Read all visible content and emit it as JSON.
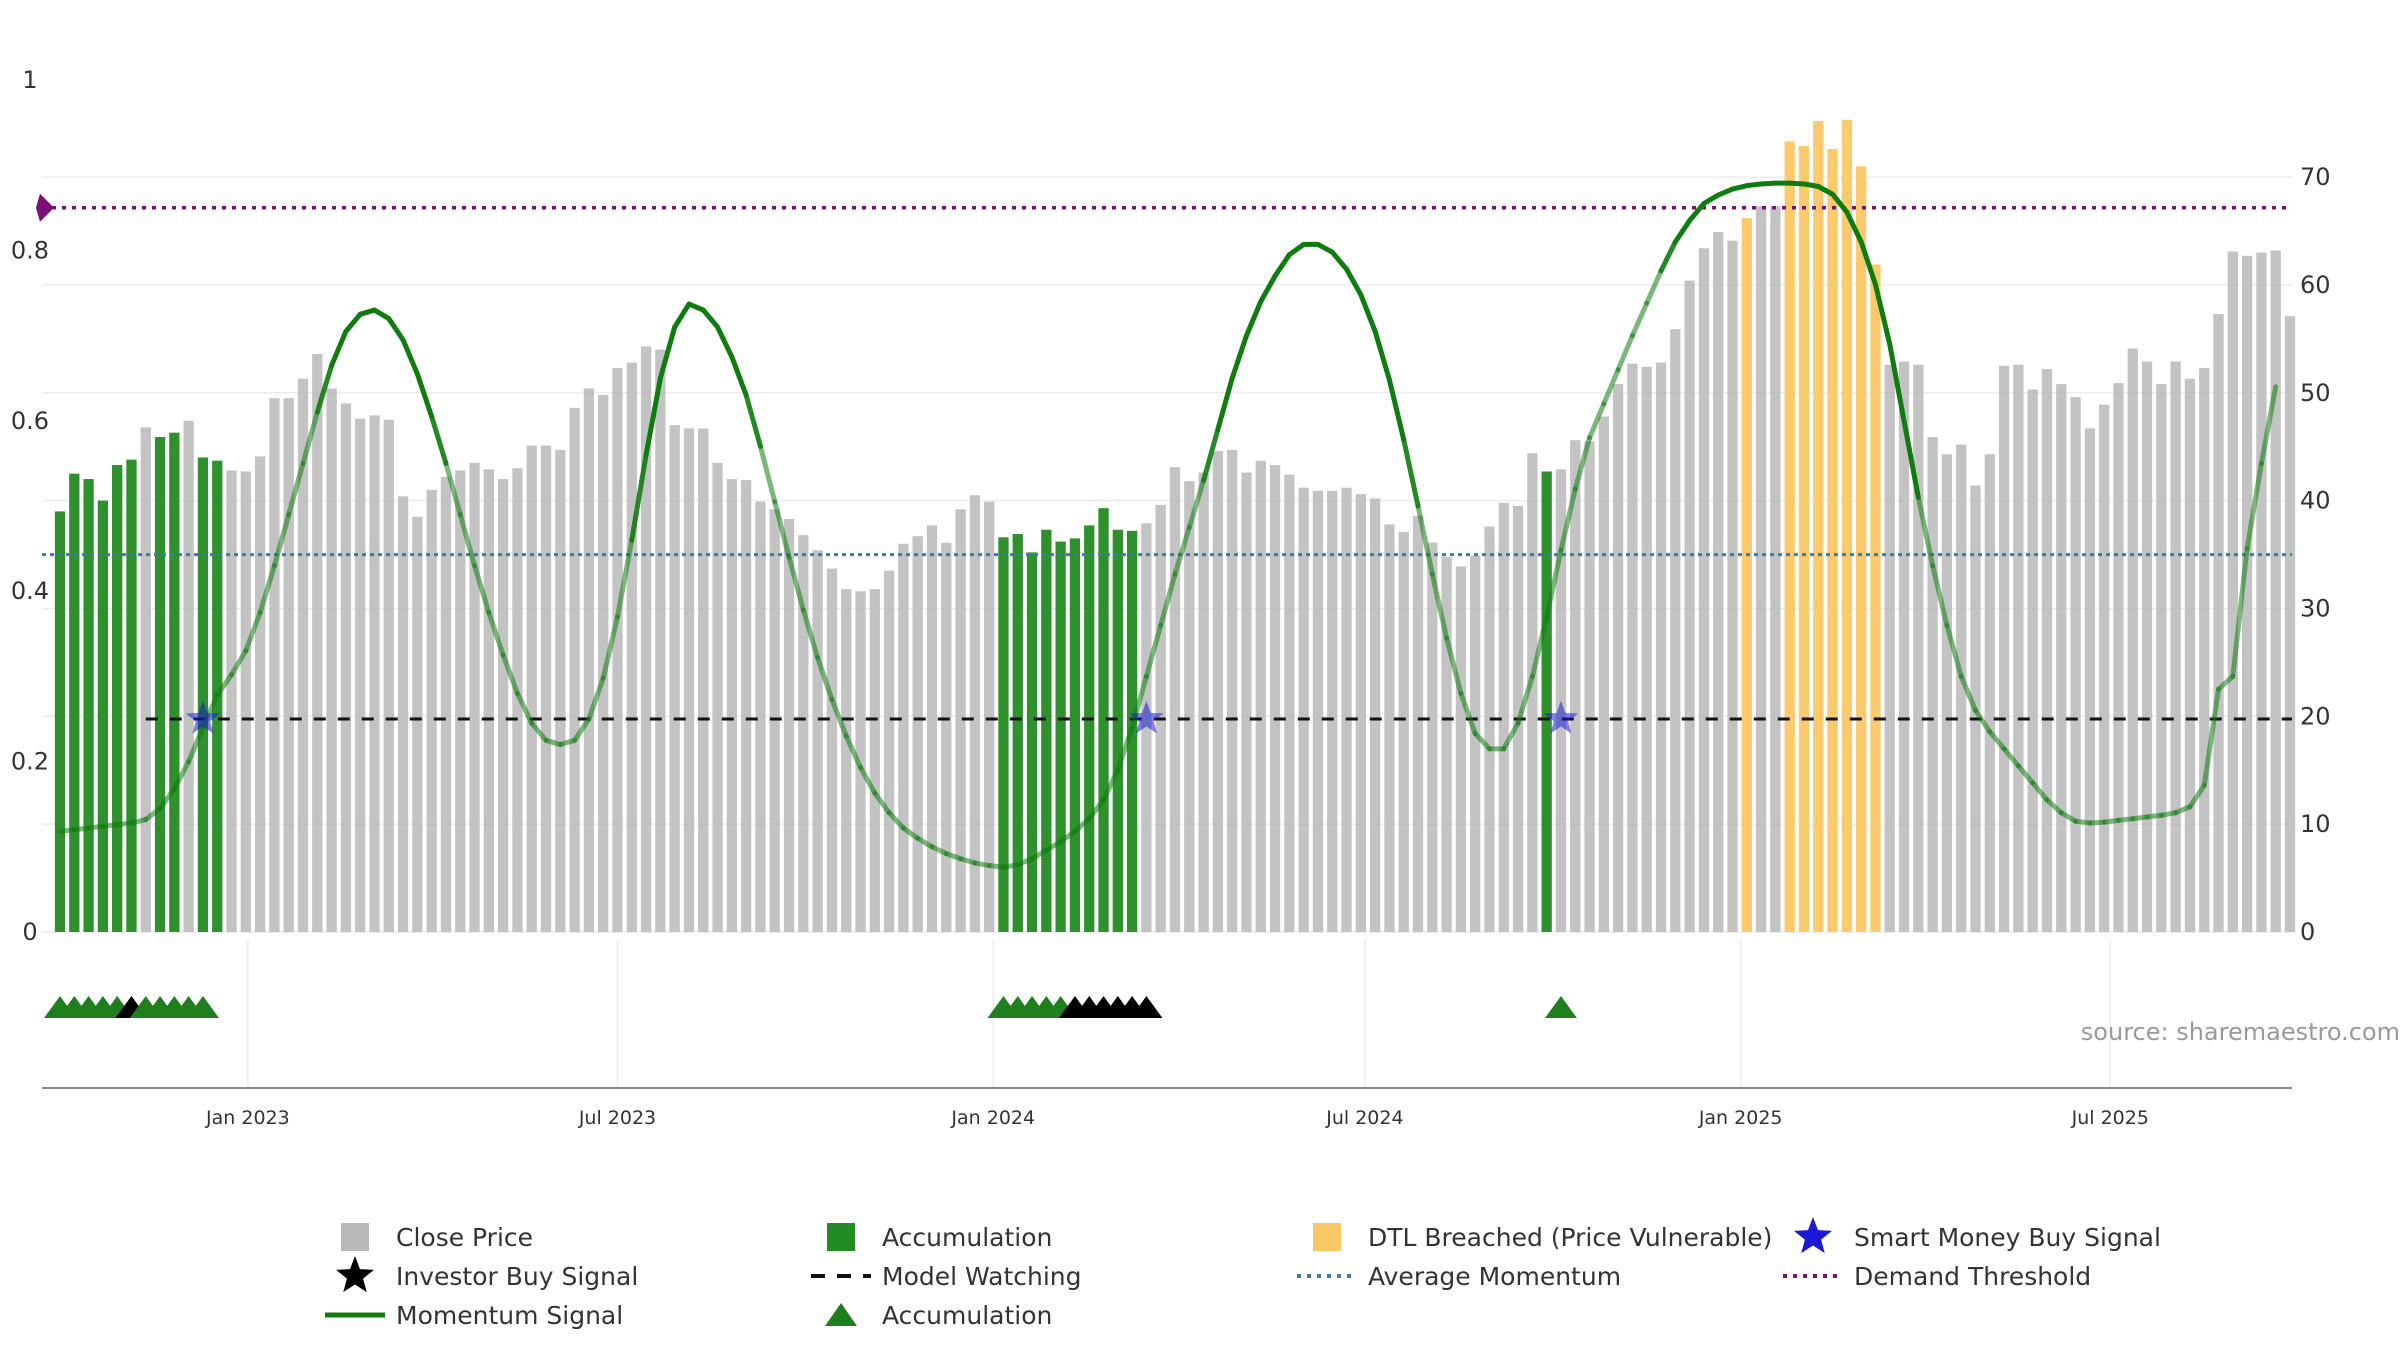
{
  "chart_data": {
    "type": "bar",
    "title": "",
    "source": "source: sharemaestro.com",
    "start_date": "2022-10-01",
    "bar_interval_days": 7,
    "left_axis": {
      "ylim": [
        0,
        1
      ],
      "ticks": [
        0,
        0.2,
        0.4,
        0.6,
        0.8,
        1
      ],
      "tick_labels": [
        "0",
        "0.2",
        "0.4",
        "0.6",
        "0.8",
        "1"
      ]
    },
    "right_axis": {
      "ylim": [
        0,
        79
      ],
      "ticks": [
        0,
        10,
        20,
        30,
        40,
        50,
        60,
        70
      ],
      "tick_labels": [
        "0",
        "10",
        "20",
        "30",
        "40",
        "50",
        "60",
        "70"
      ]
    },
    "x_ticks": [
      {
        "date": "2023-01-01",
        "label": "Jan 2023"
      },
      {
        "date": "2023-07-01",
        "label": "Jul 2023"
      },
      {
        "date": "2024-01-01",
        "label": "Jan 2024"
      },
      {
        "date": "2024-07-01",
        "label": "Jul 2024"
      },
      {
        "date": "2025-01-01",
        "label": "Jan 2025"
      },
      {
        "date": "2025-07-01",
        "label": "Jul 2025"
      }
    ],
    "close_price": [
      39.0,
      42.5,
      42.0,
      40.0,
      43.3,
      43.8,
      46.8,
      45.9,
      46.3,
      47.4,
      44.0,
      43.7,
      42.8,
      42.7,
      44.1,
      49.5,
      49.5,
      51.3,
      53.6,
      50.4,
      49.0,
      47.6,
      47.9,
      47.5,
      40.4,
      38.5,
      41.0,
      42.2,
      42.8,
      43.5,
      42.9,
      42.0,
      43.0,
      45.1,
      45.1,
      44.7,
      48.6,
      50.4,
      49.8,
      52.3,
      52.8,
      54.3,
      54.0,
      47.0,
      46.7,
      46.7,
      43.5,
      42.0,
      41.9,
      39.9,
      39.2,
      38.3,
      36.8,
      35.4,
      33.7,
      31.8,
      31.6,
      31.8,
      33.5,
      36.0,
      36.7,
      37.7,
      36.1,
      39.2,
      40.5,
      39.9,
      36.6,
      36.9,
      35.2,
      37.3,
      36.2,
      36.5,
      37.7,
      39.3,
      37.3,
      37.2,
      37.9,
      39.6,
      43.1,
      41.8,
      42.6,
      44.6,
      44.7,
      42.6,
      43.7,
      43.3,
      42.4,
      41.2,
      40.9,
      40.9,
      41.2,
      40.6,
      40.2,
      37.8,
      37.1,
      38.6,
      36.1,
      34.8,
      33.9,
      34.9,
      37.6,
      39.8,
      39.5,
      44.4,
      42.7,
      42.9,
      45.6,
      45.5,
      47.8,
      50.8,
      52.7,
      52.4,
      52.8,
      55.9,
      60.4,
      63.4,
      64.9,
      64.1,
      66.2,
      67.3,
      67.3,
      73.3,
      72.9,
      75.2,
      72.6,
      75.3,
      71.0,
      61.9,
      52.6,
      52.9,
      52.6,
      45.9,
      44.3,
      45.2,
      41.4,
      44.3,
      52.5,
      52.6,
      50.3,
      52.2,
      50.8,
      49.6,
      46.7,
      48.9,
      50.9,
      54.1,
      52.9,
      50.8,
      52.9,
      51.3,
      52.3,
      57.3,
      63.1,
      62.7,
      63.0,
      63.2,
      57.1
    ],
    "bar_status": [
      "A",
      "A",
      "A",
      "A",
      "A",
      "A",
      "P",
      "A",
      "A",
      "P",
      "A",
      "A",
      "P",
      "P",
      "P",
      "P",
      "P",
      "P",
      "P",
      "P",
      "P",
      "P",
      "P",
      "P",
      "P",
      "P",
      "P",
      "P",
      "P",
      "P",
      "P",
      "P",
      "P",
      "P",
      "P",
      "P",
      "P",
      "P",
      "P",
      "P",
      "P",
      "P",
      "P",
      "P",
      "P",
      "P",
      "P",
      "P",
      "P",
      "P",
      "P",
      "P",
      "P",
      "P",
      "P",
      "P",
      "P",
      "P",
      "P",
      "P",
      "P",
      "P",
      "P",
      "P",
      "P",
      "P",
      "A",
      "A",
      "A",
      "A",
      "A",
      "A",
      "A",
      "A",
      "A",
      "A",
      "P",
      "P",
      "P",
      "P",
      "P",
      "P",
      "P",
      "P",
      "P",
      "P",
      "P",
      "P",
      "P",
      "P",
      "P",
      "P",
      "P",
      "P",
      "P",
      "P",
      "P",
      "P",
      "P",
      "P",
      "P",
      "P",
      "P",
      "P",
      "A",
      "P",
      "P",
      "P",
      "P",
      "P",
      "P",
      "P",
      "P",
      "P",
      "P",
      "P",
      "P",
      "P",
      "D",
      "P",
      "P",
      "D",
      "D",
      "D",
      "D",
      "D",
      "D",
      "D",
      "P",
      "P",
      "P",
      "P",
      "P",
      "P",
      "P",
      "P",
      "P",
      "P",
      "P",
      "P",
      "P",
      "P",
      "P",
      "P",
      "P",
      "P",
      "P",
      "P",
      "P",
      "P",
      "P",
      "P",
      "P",
      "P",
      "P",
      "P",
      "P",
      "P",
      "P"
    ],
    "momentum_signal": [
      0.118,
      0.12,
      0.122,
      0.124,
      0.126,
      0.128,
      0.132,
      0.145,
      0.168,
      0.2,
      0.24,
      0.278,
      0.302,
      0.33,
      0.375,
      0.43,
      0.49,
      0.55,
      0.61,
      0.665,
      0.705,
      0.725,
      0.73,
      0.72,
      0.695,
      0.655,
      0.605,
      0.55,
      0.49,
      0.43,
      0.375,
      0.325,
      0.28,
      0.245,
      0.225,
      0.22,
      0.225,
      0.25,
      0.298,
      0.37,
      0.46,
      0.56,
      0.65,
      0.71,
      0.737,
      0.73,
      0.71,
      0.675,
      0.63,
      0.57,
      0.505,
      0.44,
      0.378,
      0.322,
      0.273,
      0.23,
      0.193,
      0.163,
      0.14,
      0.122,
      0.11,
      0.1,
      0.092,
      0.086,
      0.081,
      0.078,
      0.076,
      0.079,
      0.086,
      0.096,
      0.106,
      0.118,
      0.133,
      0.155,
      0.19,
      0.24,
      0.3,
      0.36,
      0.42,
      0.475,
      0.53,
      0.59,
      0.65,
      0.7,
      0.74,
      0.77,
      0.795,
      0.807,
      0.807,
      0.798,
      0.778,
      0.748,
      0.705,
      0.648,
      0.578,
      0.5,
      0.42,
      0.345,
      0.28,
      0.233,
      0.215,
      0.215,
      0.245,
      0.3,
      0.37,
      0.448,
      0.52,
      0.58,
      0.62,
      0.66,
      0.7,
      0.738,
      0.776,
      0.81,
      0.835,
      0.855,
      0.865,
      0.872,
      0.876,
      0.878,
      0.879,
      0.879,
      0.878,
      0.875,
      0.866,
      0.845,
      0.81,
      0.76,
      0.69,
      0.6,
      0.51,
      0.43,
      0.36,
      0.3,
      0.26,
      0.235,
      0.215,
      0.195,
      0.175,
      0.155,
      0.14,
      0.13,
      0.128,
      0.129,
      0.131,
      0.133,
      0.135,
      0.137,
      0.14,
      0.147,
      0.172,
      0.285,
      0.3,
      0.45,
      0.55,
      0.64
    ],
    "momentum_alpha": [
      0.55,
      0.55,
      0.55,
      0.55,
      0.55,
      0.55,
      0.55,
      0.55,
      0.55,
      0.55,
      0.55,
      0.55,
      0.55,
      0.55,
      0.55,
      0.55,
      0.55,
      0.55,
      0.9,
      1,
      1,
      1,
      1,
      1,
      1,
      1,
      1,
      0.9,
      0.55,
      0.55,
      0.55,
      0.55,
      0.55,
      0.55,
      0.55,
      0.55,
      0.55,
      0.55,
      0.55,
      0.55,
      0.9,
      1,
      1,
      1,
      1,
      1,
      1,
      1,
      1,
      0.9,
      0.55,
      0.55,
      0.55,
      0.55,
      0.55,
      0.55,
      0.55,
      0.55,
      0.55,
      0.55,
      0.55,
      0.55,
      0.55,
      0.55,
      0.55,
      0.55,
      0.55,
      0.55,
      0.55,
      0.55,
      0.55,
      0.55,
      0.55,
      0.55,
      0.55,
      0.55,
      0.55,
      0.55,
      0.55,
      0.55,
      0.9,
      1,
      1,
      1,
      1,
      1,
      1,
      1,
      1,
      1,
      1,
      1,
      1,
      1,
      1,
      0.9,
      0.55,
      0.55,
      0.55,
      0.55,
      0.55,
      0.55,
      0.55,
      0.55,
      0.55,
      0.55,
      0.55,
      0.55,
      0.55,
      0.55,
      0.55,
      0.55,
      0.9,
      1,
      1,
      1,
      1,
      1,
      1,
      1,
      1,
      1,
      1,
      1,
      1,
      1,
      1,
      1,
      1,
      1,
      1,
      0.55,
      0.55,
      0.55,
      0.55,
      0.55,
      0.55,
      0.55,
      0.55,
      0.55,
      0.55,
      0.55,
      0.55,
      0.55,
      0.55,
      0.55,
      0.55,
      0.55,
      0.55,
      0.55,
      0.55,
      0.55,
      0.55,
      0.55,
      0.55,
      0.55,
      0.55
    ],
    "average_momentum": 0.443,
    "model_watching": 0.25,
    "demand_threshold": 0.85,
    "smart_money_buy_signals": [
      10,
      76,
      105
    ],
    "accumulation_markers": [
      {
        "index": 0,
        "type": "accumulation"
      },
      {
        "index": 1,
        "type": "accumulation"
      },
      {
        "index": 2,
        "type": "accumulation"
      },
      {
        "index": 3,
        "type": "accumulation"
      },
      {
        "index": 4,
        "type": "accumulation"
      },
      {
        "index": 5,
        "type": "investor"
      },
      {
        "index": 6,
        "type": "accumulation"
      },
      {
        "index": 7,
        "type": "accumulation"
      },
      {
        "index": 8,
        "type": "accumulation"
      },
      {
        "index": 9,
        "type": "accumulation"
      },
      {
        "index": 10,
        "type": "accumulation"
      },
      {
        "index": 66,
        "type": "accumulation"
      },
      {
        "index": 67,
        "type": "accumulation"
      },
      {
        "index": 68,
        "type": "accumulation"
      },
      {
        "index": 69,
        "type": "accumulation"
      },
      {
        "index": 70,
        "type": "accumulation"
      },
      {
        "index": 71,
        "type": "investor"
      },
      {
        "index": 72,
        "type": "investor"
      },
      {
        "index": 73,
        "type": "investor"
      },
      {
        "index": 74,
        "type": "investor"
      },
      {
        "index": 75,
        "type": "investor"
      },
      {
        "index": 76,
        "type": "investor"
      },
      {
        "index": 105,
        "type": "accumulation"
      }
    ],
    "colors": {
      "close_price": "#b9b9b9",
      "accumulation": "#238b23",
      "dtl_breached": "#fbc766",
      "momentum": "#0e7c0e",
      "average_momentum": "#3a7da8",
      "model_watching": "#111111",
      "demand_threshold": "#7b0f74",
      "smart_money": "#1a1ad6",
      "investor": "#000000",
      "accumulation_marker": "#1f7f1f"
    },
    "legend": [
      {
        "label": "Close Price",
        "symbol": "square",
        "color": "#b9b9b9"
      },
      {
        "label": "Investor Buy Signal",
        "symbol": "star",
        "color": "#000000"
      },
      {
        "label": "Momentum Signal",
        "symbol": "line",
        "color": "#0e7c0e"
      },
      {
        "label": "Accumulation",
        "symbol": "square",
        "color": "#238b23"
      },
      {
        "label": "Model Watching",
        "symbol": "dash",
        "color": "#111111"
      },
      {
        "label": "Accumulation",
        "symbol": "triangle",
        "color": "#1f7f1f"
      },
      {
        "label": "DTL Breached (Price Vulnerable)",
        "symbol": "square",
        "color": "#fbc766"
      },
      {
        "label": "Average Momentum",
        "symbol": "dot",
        "color": "#3a7da8"
      },
      {
        "label": "Smart Money Buy Signal",
        "symbol": "star",
        "color": "#1a1ad6"
      },
      {
        "label": "Demand Threshold",
        "symbol": "dot",
        "color": "#7b0f74"
      }
    ]
  }
}
